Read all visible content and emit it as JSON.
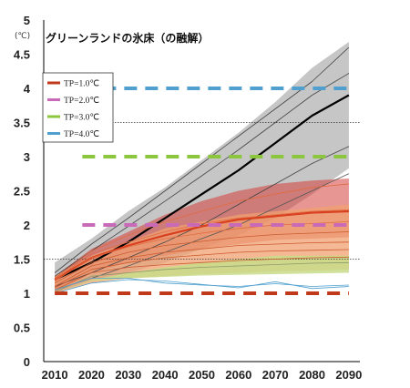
{
  "chart_data": {
    "type": "line",
    "title": "グリーンランドの氷床（の融解）",
    "ylabel": "(℃)",
    "xlabel": "",
    "xlim": [
      2007,
      2093
    ],
    "ylim": [
      0,
      5
    ],
    "xticks": [
      2010,
      2020,
      2030,
      2040,
      2050,
      2060,
      2070,
      2080,
      2090
    ],
    "yticks": [
      "0",
      "0.5",
      "1",
      "1.5",
      "2",
      "2.5",
      "3",
      "3.5",
      "4",
      "4.5",
      "5"
    ],
    "dotted_gridlines": [
      1.5,
      3.5
    ],
    "thresholds": [
      {
        "name": "TP=1.0℃",
        "value": 1.0,
        "color": "#c0391b"
      },
      {
        "name": "TP=2.0℃",
        "value": 2.0,
        "color": "#c86ab8"
      },
      {
        "name": "TP=3.0℃",
        "value": 3.0,
        "color": "#8cc63f"
      },
      {
        "name": "TP=4.0℃",
        "value": 4.0,
        "color": "#4f9fcf"
      }
    ],
    "x": [
      2010,
      2020,
      2030,
      2040,
      2050,
      2060,
      2070,
      2080,
      2090
    ],
    "bands": [
      {
        "fill": "#b3b3b3",
        "opacity": 0.75,
        "upper": [
          1.45,
          1.8,
          2.2,
          2.55,
          2.95,
          3.35,
          3.8,
          4.3,
          4.68
        ],
        "lower": [
          1.0,
          1.18,
          1.3,
          1.45,
          1.65,
          1.85,
          2.1,
          2.45,
          2.83
        ]
      },
      {
        "fill": "#d5403a",
        "opacity": 0.55,
        "upper": [
          1.25,
          1.65,
          1.9,
          2.15,
          2.35,
          2.5,
          2.6,
          2.65,
          2.68
        ],
        "lower": [
          1.0,
          1.3,
          1.45,
          1.55,
          1.65,
          1.72,
          1.78,
          1.8,
          1.82
        ]
      },
      {
        "fill": "#f0a070",
        "opacity": 0.75,
        "upper": [
          1.25,
          1.55,
          1.75,
          1.95,
          2.05,
          2.15,
          2.2,
          2.25,
          2.3
        ],
        "lower": [
          1.0,
          1.15,
          1.22,
          1.25,
          1.28,
          1.3,
          1.32,
          1.33,
          1.35
        ]
      },
      {
        "fill": "#c8dc8a",
        "opacity": 0.85,
        "upper": [
          1.0,
          1.2,
          1.3,
          1.38,
          1.45,
          1.5,
          1.55,
          1.55,
          1.55
        ],
        "lower": [
          1.0,
          1.18,
          1.22,
          1.24,
          1.26,
          1.27,
          1.28,
          1.29,
          1.3
        ]
      }
    ],
    "series": [
      {
        "color": "#000000",
        "width": 2.2,
        "values": [
          1.2,
          1.45,
          1.75,
          2.1,
          2.45,
          2.8,
          3.2,
          3.6,
          3.9
        ]
      },
      {
        "color": "#444444",
        "width": 0.8,
        "values": [
          1.3,
          1.72,
          2.1,
          2.5,
          2.9,
          3.3,
          3.7,
          4.1,
          4.6
        ]
      },
      {
        "color": "#444444",
        "width": 0.8,
        "values": [
          1.25,
          1.62,
          1.98,
          2.35,
          2.72,
          3.1,
          3.5,
          3.9,
          4.22
        ]
      },
      {
        "color": "#444444",
        "width": 0.8,
        "values": [
          1.1,
          1.3,
          1.52,
          1.75,
          2.0,
          2.3,
          2.6,
          2.9,
          3.15
        ]
      },
      {
        "color": "#555555",
        "width": 0.8,
        "values": [
          1.05,
          1.22,
          1.4,
          1.6,
          1.8,
          2.0,
          2.25,
          2.5,
          2.75
        ]
      },
      {
        "color": "#d94020",
        "width": 2.2,
        "values": [
          1.2,
          1.52,
          1.7,
          1.85,
          1.98,
          2.08,
          2.13,
          2.18,
          2.2
        ]
      },
      {
        "color": "#e06a40",
        "width": 0.8,
        "values": [
          1.22,
          1.62,
          1.85,
          2.05,
          2.2,
          2.35,
          2.45,
          2.55,
          2.6
        ]
      },
      {
        "color": "#e06a40",
        "width": 0.8,
        "values": [
          1.2,
          1.58,
          1.75,
          1.9,
          2.02,
          2.1,
          2.15,
          2.2,
          2.22
        ]
      },
      {
        "color": "#e06a40",
        "width": 0.8,
        "values": [
          1.18,
          1.52,
          1.68,
          1.8,
          1.88,
          1.95,
          2.0,
          2.02,
          2.05
        ]
      },
      {
        "color": "#cc5a30",
        "width": 0.8,
        "values": [
          1.15,
          1.45,
          1.6,
          1.7,
          1.76,
          1.82,
          1.86,
          1.88,
          1.9
        ]
      },
      {
        "color": "#cc5a30",
        "width": 0.8,
        "values": [
          1.1,
          1.4,
          1.52,
          1.6,
          1.65,
          1.7,
          1.72,
          1.74,
          1.75
        ]
      },
      {
        "color": "#cc5a30",
        "width": 0.8,
        "values": [
          1.08,
          1.35,
          1.45,
          1.52,
          1.56,
          1.6,
          1.62,
          1.63,
          1.64
        ]
      },
      {
        "color": "#cc5a30",
        "width": 0.8,
        "values": [
          1.05,
          1.3,
          1.38,
          1.42,
          1.45,
          1.48,
          1.5,
          1.52,
          1.53
        ]
      },
      {
        "color": "#8c9a6a",
        "width": 0.8,
        "values": [
          1.02,
          1.25,
          1.3,
          1.35,
          1.38,
          1.4,
          1.42,
          1.44,
          1.45
        ]
      },
      {
        "color": "#4f9fcf",
        "width": 0.8,
        "values": [
          1.05,
          1.22,
          1.22,
          1.15,
          1.12,
          1.1,
          1.14,
          1.1,
          1.12
        ]
      },
      {
        "color": "#4f9fcf",
        "width": 0.8,
        "values": [
          1.0,
          1.15,
          1.2,
          1.18,
          1.13,
          1.08,
          1.17,
          1.07,
          1.1
        ]
      }
    ],
    "legend": {
      "placement": "upper-left"
    }
  }
}
